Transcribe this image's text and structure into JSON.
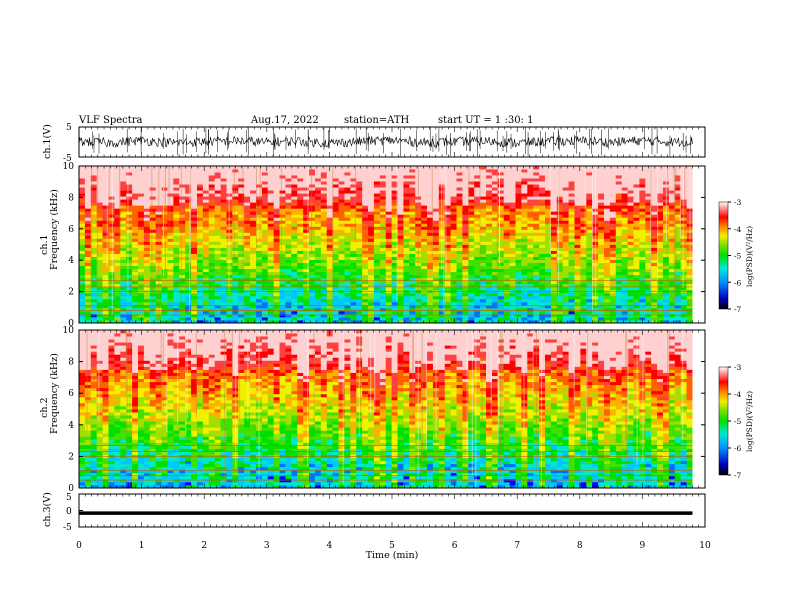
{
  "header": {
    "title": "VLF Spectra",
    "date": "Aug.17, 2022",
    "station": "station=ATH",
    "start": "start UT =  1 :30: 1"
  },
  "chart_data": [
    {
      "type": "line",
      "ylabel": "ch.1(V)",
      "ylim": [
        -5,
        5
      ],
      "y_ticks": [
        "5",
        "-5"
      ],
      "xlim": [
        0,
        10
      ],
      "x": [
        0,
        0.5,
        1,
        1.5,
        2,
        2.5,
        3,
        3.5,
        4,
        4.5,
        5,
        5.5,
        6,
        6.5,
        7,
        7.5,
        8,
        8.5,
        9,
        9.5,
        9.8
      ],
      "y": [
        0.2,
        -0.3,
        0.5,
        -0.2,
        0.1,
        0.4,
        -0.1,
        0.3,
        -0.4,
        0.2,
        0.6,
        -0.2,
        0.1,
        0.3,
        -0.3,
        0.2,
        0.4,
        -0.1,
        0.5,
        0.0,
        0.2
      ]
    },
    {
      "type": "heatmap",
      "ylabel": "ch.1\nFrequency (kHz)",
      "ylabel_lines": [
        "ch.1",
        "Frequency (kHz)"
      ],
      "ylim": [
        0,
        10
      ],
      "y_ticks": [
        "0",
        "2",
        "4",
        "6",
        "8",
        "10"
      ],
      "xlim": [
        0,
        10
      ],
      "colorbar": {
        "label": "log(PSD)(V²/Hz)",
        "range": [
          -7,
          -3
        ],
        "ticks": [
          "-3",
          "-4",
          "-5",
          "-6",
          "-7"
        ]
      }
    },
    {
      "type": "heatmap",
      "ylabel": "ch.2\nFrequency (kHz)",
      "ylabel_lines": [
        "ch.2",
        "Frequency (kHz)"
      ],
      "ylim": [
        0,
        10
      ],
      "y_ticks": [
        "0",
        "2",
        "4",
        "6",
        "8",
        "10"
      ],
      "xlim": [
        0,
        10
      ],
      "colorbar": {
        "label": "log(PSD)(V²/Hz)",
        "range": [
          -7,
          -3
        ],
        "ticks": [
          "-3",
          "-4",
          "-5",
          "-6",
          "-7"
        ]
      }
    },
    {
      "type": "line",
      "ylabel": "ch.3(V)",
      "ylim": [
        -5,
        5
      ],
      "y_ticks": [
        "5",
        "0",
        "-5"
      ],
      "xlim": [
        0,
        10
      ],
      "x": [
        0,
        9.8
      ],
      "y": [
        -0.8,
        -0.8
      ]
    }
  ],
  "x_axis": {
    "label": "Time (min)",
    "ticks": [
      "0",
      "1",
      "2",
      "3",
      "4",
      "5",
      "6",
      "7",
      "8",
      "9",
      "10"
    ]
  }
}
